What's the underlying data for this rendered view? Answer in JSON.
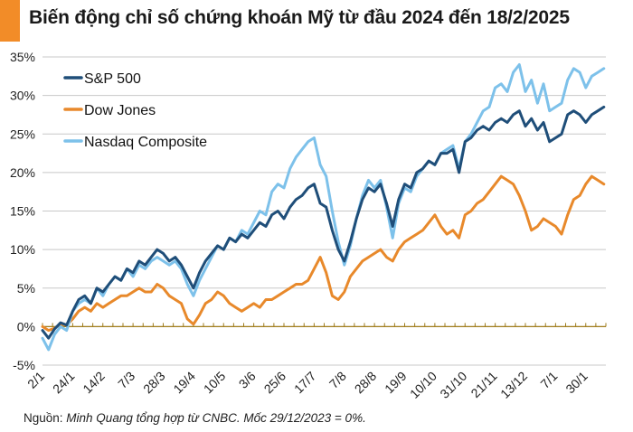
{
  "title": "Biến động chỉ số chứng khoán Mỹ từ đầu 2024 đến 18/2/2025",
  "source": {
    "lead": "Nguồn: ",
    "rest": "Minh Quang tổng hợp từ CNBC. Mốc 29/12/2023 = 0%."
  },
  "colors": {
    "accent": "#f28c28",
    "sp500": "#1f4e79",
    "dow": "#e8892b",
    "nasdaq": "#7dc1ea",
    "grid": "#c8c8c8",
    "baseline": "#a07d1c"
  },
  "chart_data": {
    "type": "line",
    "title": "Biến động chỉ số chứng khoán Mỹ từ đầu 2024 đến 18/2/2025",
    "xlabel": "",
    "ylabel": "",
    "ylim": [
      -5,
      35
    ],
    "y_ticks": [
      -5,
      0,
      5,
      10,
      15,
      20,
      25,
      30,
      35
    ],
    "y_tick_labels": [
      "-5%",
      "0%",
      "5%",
      "10%",
      "15%",
      "20%",
      "25%",
      "30%",
      "35%"
    ],
    "x_tick_labels": [
      "2/1",
      "24/1",
      "14/2",
      "7/3",
      "28/3",
      "19/4",
      "10/5",
      "3/6",
      "25/6",
      "17/7",
      "7/8",
      "28/8",
      "19/9",
      "10/10",
      "31/10",
      "21/11",
      "13/12",
      "7/1",
      "30/1"
    ],
    "x_tick_positions": [
      0,
      15,
      30,
      45,
      60,
      75,
      90,
      105,
      120,
      135,
      150,
      165,
      180,
      195,
      210,
      225,
      240,
      255,
      270
    ],
    "x_range": [
      0,
      280
    ],
    "legend": {
      "position": "top-left"
    },
    "series": [
      {
        "name": "S&P 500",
        "x": [
          0,
          3,
          6,
          9,
          12,
          15,
          18,
          21,
          24,
          27,
          30,
          33,
          36,
          39,
          42,
          45,
          48,
          51,
          54,
          57,
          60,
          63,
          66,
          69,
          72,
          75,
          78,
          81,
          84,
          87,
          90,
          93,
          96,
          99,
          102,
          105,
          108,
          111,
          114,
          117,
          120,
          123,
          126,
          129,
          132,
          135,
          138,
          141,
          144,
          147,
          150,
          153,
          156,
          159,
          162,
          165,
          168,
          171,
          174,
          177,
          180,
          183,
          186,
          189,
          192,
          195,
          198,
          201,
          204,
          207,
          210,
          213,
          216,
          219,
          222,
          225,
          228,
          231,
          234,
          237,
          240,
          243,
          246,
          249,
          252,
          255,
          258,
          261,
          264,
          267,
          270,
          273,
          276,
          279
        ],
        "values": [
          -0.5,
          -1.5,
          -0.3,
          0.5,
          0.2,
          2.0,
          3.5,
          4.0,
          3.0,
          5.0,
          4.5,
          5.5,
          6.5,
          6.0,
          7.5,
          7.0,
          8.5,
          8.0,
          9.0,
          10.0,
          9.5,
          8.5,
          9.0,
          8.0,
          6.5,
          5.0,
          7.0,
          8.5,
          9.5,
          10.5,
          10.0,
          11.5,
          11.0,
          12.0,
          11.5,
          12.5,
          13.5,
          13.0,
          14.5,
          15.0,
          14.0,
          15.5,
          16.5,
          17.0,
          18.0,
          18.5,
          16.0,
          15.5,
          12.5,
          10.0,
          8.5,
          11.0,
          14.0,
          16.5,
          18.0,
          17.5,
          18.5,
          16.0,
          13.0,
          16.5,
          18.5,
          18.0,
          20.0,
          20.5,
          21.5,
          21.0,
          22.5,
          22.5,
          23.0,
          20.0,
          24.0,
          24.5,
          25.5,
          26.0,
          25.5,
          26.5,
          27.0,
          26.5,
          27.5,
          28.0,
          26.0,
          27.0,
          25.5,
          26.5,
          24.0,
          24.5,
          25.0,
          27.5,
          28.0,
          27.5,
          26.5,
          27.5,
          28.0,
          28.5
        ]
      },
      {
        "name": "Dow Jones",
        "x": [
          0,
          3,
          6,
          9,
          12,
          15,
          18,
          21,
          24,
          27,
          30,
          33,
          36,
          39,
          42,
          45,
          48,
          51,
          54,
          57,
          60,
          63,
          66,
          69,
          72,
          75,
          78,
          81,
          84,
          87,
          90,
          93,
          96,
          99,
          102,
          105,
          108,
          111,
          114,
          117,
          120,
          123,
          126,
          129,
          132,
          135,
          138,
          141,
          144,
          147,
          150,
          153,
          156,
          159,
          162,
          165,
          168,
          171,
          174,
          177,
          180,
          183,
          186,
          189,
          192,
          195,
          198,
          201,
          204,
          207,
          210,
          213,
          216,
          219,
          222,
          225,
          228,
          231,
          234,
          237,
          240,
          243,
          246,
          249,
          252,
          255,
          258,
          261,
          264,
          267,
          270,
          273,
          276,
          279
        ],
        "values": [
          0.0,
          -0.5,
          -0.2,
          0.3,
          0.2,
          1.0,
          2.0,
          2.5,
          2.0,
          3.0,
          2.5,
          3.0,
          3.5,
          4.0,
          4.0,
          4.5,
          5.0,
          4.5,
          4.5,
          5.5,
          5.0,
          4.0,
          3.5,
          3.0,
          1.0,
          0.3,
          1.5,
          3.0,
          3.5,
          4.5,
          4.0,
          3.0,
          2.5,
          2.0,
          2.5,
          3.0,
          2.5,
          3.5,
          3.5,
          4.0,
          4.5,
          5.0,
          5.5,
          5.5,
          6.0,
          7.5,
          9.0,
          7.0,
          4.0,
          3.5,
          4.5,
          6.5,
          7.5,
          8.5,
          9.0,
          9.5,
          10.0,
          9.0,
          8.5,
          10.0,
          11.0,
          11.5,
          12.0,
          12.5,
          13.5,
          14.5,
          13.0,
          12.0,
          12.5,
          11.5,
          14.5,
          15.0,
          16.0,
          16.5,
          17.5,
          18.5,
          19.5,
          19.0,
          18.5,
          17.0,
          15.0,
          12.5,
          13.0,
          14.0,
          13.5,
          13.0,
          12.0,
          14.5,
          16.5,
          17.0,
          18.5,
          19.5,
          19.0,
          18.5
        ]
      },
      {
        "name": "Nasdaq Composite",
        "x": [
          0,
          3,
          6,
          9,
          12,
          15,
          18,
          21,
          24,
          27,
          30,
          33,
          36,
          39,
          42,
          45,
          48,
          51,
          54,
          57,
          60,
          63,
          66,
          69,
          72,
          75,
          78,
          81,
          84,
          87,
          90,
          93,
          96,
          99,
          102,
          105,
          108,
          111,
          114,
          117,
          120,
          123,
          126,
          129,
          132,
          135,
          138,
          141,
          144,
          147,
          150,
          153,
          156,
          159,
          162,
          165,
          168,
          171,
          174,
          177,
          180,
          183,
          186,
          189,
          192,
          195,
          198,
          201,
          204,
          207,
          210,
          213,
          216,
          219,
          222,
          225,
          228,
          231,
          234,
          237,
          240,
          243,
          246,
          249,
          252,
          255,
          258,
          261,
          264,
          267,
          270,
          273,
          276,
          279
        ],
        "values": [
          -1.5,
          -3.0,
          -1.0,
          0.0,
          -0.5,
          2.0,
          3.0,
          3.5,
          3.0,
          5.0,
          4.0,
          5.5,
          6.5,
          6.0,
          7.5,
          6.5,
          8.0,
          7.5,
          8.5,
          9.0,
          8.5,
          8.0,
          8.5,
          7.5,
          5.5,
          4.0,
          6.0,
          7.5,
          9.0,
          10.5,
          10.0,
          11.5,
          11.0,
          12.5,
          12.0,
          13.5,
          15.0,
          14.5,
          17.5,
          18.5,
          18.0,
          20.5,
          22.0,
          23.0,
          24.0,
          24.5,
          21.0,
          19.5,
          15.0,
          11.0,
          8.0,
          10.5,
          14.0,
          17.0,
          19.0,
          18.0,
          19.0,
          15.5,
          11.5,
          16.0,
          18.0,
          17.5,
          19.5,
          20.5,
          21.5,
          21.0,
          22.5,
          23.0,
          23.5,
          20.5,
          24.0,
          25.0,
          26.5,
          28.0,
          28.5,
          31.0,
          31.5,
          30.5,
          33.0,
          34.0,
          30.5,
          32.0,
          29.0,
          31.5,
          28.0,
          28.5,
          29.0,
          32.0,
          33.5,
          33.0,
          31.0,
          32.5,
          33.0,
          33.5
        ]
      }
    ]
  }
}
